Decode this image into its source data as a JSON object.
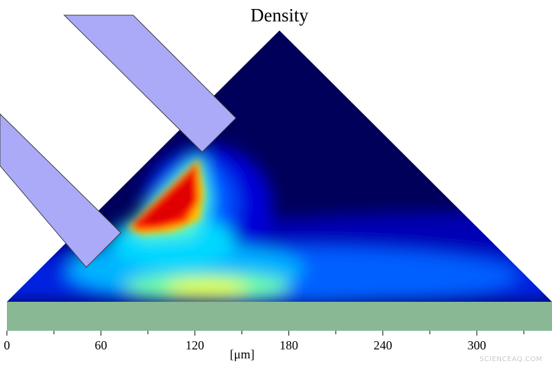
{
  "title": "Density",
  "x_axis": {
    "unit_label": "[μm]",
    "min": 0,
    "max": 348,
    "major_ticks": [
      0,
      60,
      120,
      180,
      240,
      300
    ],
    "minor_ticks": [
      30,
      90,
      150,
      210,
      270,
      330
    ]
  },
  "colors": {
    "background": "#ffffff",
    "substrate": "#88b894",
    "blades": "#aaaaf8",
    "colormap": [
      "#00005a",
      "#0000c8",
      "#0050ff",
      "#00c8ff",
      "#40ffb0",
      "#e0ff20",
      "#ffb000",
      "#ff2000",
      "#c80000"
    ]
  },
  "watermark": "SCIENCEAQ.COM"
}
